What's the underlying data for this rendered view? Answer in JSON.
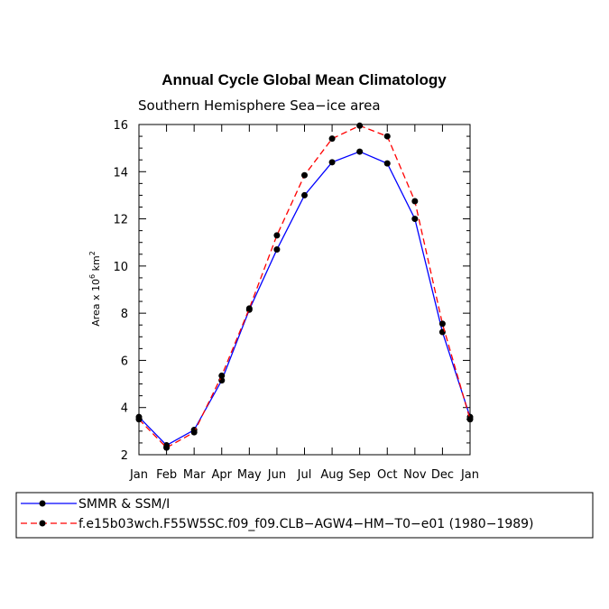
{
  "chart_data": {
    "type": "line",
    "title": "Annual Cycle Global Mean Climatology",
    "subtitle": "Southern Hemisphere Sea−ice area",
    "xlabel": "",
    "ylabel_prefix": "Area x 10",
    "ylabel_exponent": "6",
    "ylabel_unit": " km",
    "ylabel_unit_exponent": "2",
    "categories": [
      "Jan",
      "Feb",
      "Mar",
      "Apr",
      "May",
      "Jun",
      "Jul",
      "Aug",
      "Sep",
      "Oct",
      "Nov",
      "Dec",
      "Jan"
    ],
    "ylim": [
      2,
      16
    ],
    "yticks": [
      2,
      4,
      6,
      8,
      10,
      12,
      14,
      16
    ],
    "grid": false,
    "legend_placement": "bottom",
    "series": [
      {
        "name": "SMMR & SSM/I",
        "color": "#0000ff",
        "dash": "solid",
        "values": [
          3.6,
          2.4,
          3.05,
          5.15,
          8.15,
          10.7,
          13.0,
          14.4,
          14.85,
          14.35,
          12.0,
          7.2,
          3.6
        ]
      },
      {
        "name": "f.e15b03wch.F55W5SC.f09_f09.CLB−AGW4−HM−T0−e01 (1980−1989)",
        "color": "#ff0000",
        "dash": "dashed",
        "values": [
          3.5,
          2.3,
          2.95,
          5.35,
          8.2,
          11.3,
          13.85,
          15.4,
          15.95,
          15.5,
          12.75,
          7.55,
          3.5
        ]
      }
    ]
  }
}
